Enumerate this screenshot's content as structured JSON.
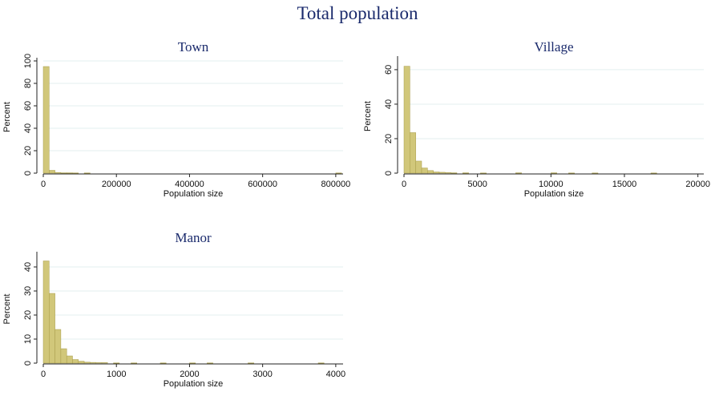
{
  "title": "Total population",
  "chart_data": [
    {
      "type": "bar",
      "title": "Town",
      "xlabel": "Population size",
      "ylabel": "Percent",
      "xlim": [
        0,
        820000
      ],
      "ylim": [
        0,
        100
      ],
      "xticks": [
        0,
        200000,
        400000,
        600000,
        800000
      ],
      "xtick_labels": [
        "0",
        "200000",
        "400000",
        "600000",
        "800000"
      ],
      "yticks": [
        0,
        20,
        40,
        60,
        80,
        100
      ],
      "ytick_labels": [
        "0",
        "20",
        "40",
        "60",
        "80",
        "100"
      ],
      "bin_width": 16000,
      "bins": [
        {
          "x": 0,
          "value": 95
        },
        {
          "x": 16000,
          "value": 2.5
        },
        {
          "x": 32000,
          "value": 0.6
        },
        {
          "x": 48000,
          "value": 0.3
        },
        {
          "x": 64000,
          "value": 0.3
        },
        {
          "x": 80000,
          "value": 0.2
        },
        {
          "x": 112000,
          "value": 0.2
        },
        {
          "x": 800000,
          "value": 0.2
        }
      ]
    },
    {
      "type": "bar",
      "title": "Village",
      "xlabel": "Population size",
      "ylabel": "Percent",
      "xlim": [
        0,
        20400
      ],
      "ylim": [
        0,
        66
      ],
      "xticks": [
        0,
        5000,
        10000,
        15000,
        20000
      ],
      "xtick_labels": [
        "0",
        "5000",
        "10000",
        "15000",
        "20000"
      ],
      "yticks": [
        0,
        20,
        40,
        60
      ],
      "ytick_labels": [
        "0",
        "20",
        "40",
        "60"
      ],
      "bin_width": 400,
      "bins": [
        {
          "x": 0,
          "value": 62
        },
        {
          "x": 400,
          "value": 23.5
        },
        {
          "x": 800,
          "value": 7
        },
        {
          "x": 1200,
          "value": 3
        },
        {
          "x": 1600,
          "value": 1.5
        },
        {
          "x": 2000,
          "value": 0.7
        },
        {
          "x": 2400,
          "value": 0.5
        },
        {
          "x": 2800,
          "value": 0.3
        },
        {
          "x": 3200,
          "value": 0.2
        },
        {
          "x": 4000,
          "value": 0.2
        },
        {
          "x": 5200,
          "value": 0.1
        },
        {
          "x": 7600,
          "value": 0.2
        },
        {
          "x": 10000,
          "value": 0.2
        },
        {
          "x": 11200,
          "value": 0.1
        },
        {
          "x": 12800,
          "value": 0.1
        },
        {
          "x": 16800,
          "value": 0.1
        }
      ]
    },
    {
      "type": "bar",
      "title": "Manor",
      "xlabel": "Population size",
      "ylabel": "Percent",
      "xlim": [
        0,
        4100
      ],
      "ylim": [
        0,
        45
      ],
      "xticks": [
        0,
        1000,
        2000,
        3000,
        4000
      ],
      "xtick_labels": [
        "0",
        "1000",
        "2000",
        "3000",
        "4000"
      ],
      "yticks": [
        0,
        10,
        20,
        30,
        40
      ],
      "ytick_labels": [
        "0",
        "10",
        "20",
        "30",
        "40"
      ],
      "bin_width": 80,
      "bins": [
        {
          "x": 0,
          "value": 42.5
        },
        {
          "x": 80,
          "value": 29
        },
        {
          "x": 160,
          "value": 14
        },
        {
          "x": 240,
          "value": 6
        },
        {
          "x": 320,
          "value": 3
        },
        {
          "x": 400,
          "value": 1.5
        },
        {
          "x": 480,
          "value": 0.8
        },
        {
          "x": 560,
          "value": 0.4
        },
        {
          "x": 640,
          "value": 0.3
        },
        {
          "x": 720,
          "value": 0.2
        },
        {
          "x": 800,
          "value": 0.2
        },
        {
          "x": 960,
          "value": 0.1
        },
        {
          "x": 1200,
          "value": 0.1
        },
        {
          "x": 1600,
          "value": 0.1
        },
        {
          "x": 2000,
          "value": 0.1
        },
        {
          "x": 2240,
          "value": 0.1
        },
        {
          "x": 2800,
          "value": 0.1
        },
        {
          "x": 3760,
          "value": 0.1
        }
      ]
    }
  ]
}
